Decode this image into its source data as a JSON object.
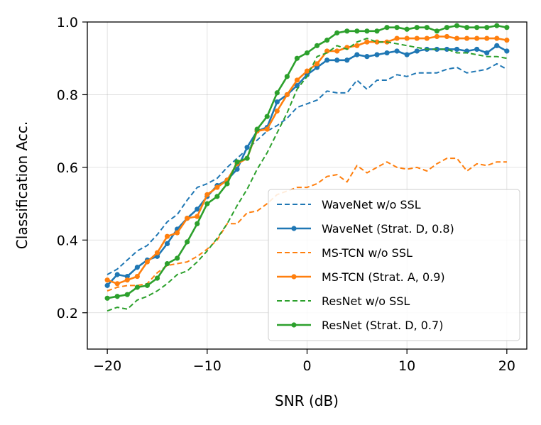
{
  "chart_data": {
    "type": "line",
    "title": "",
    "xlabel": "SNR (dB)",
    "ylabel": "Classification Acc.",
    "xlim": [
      -22,
      22
    ],
    "ylim": [
      0.1,
      1.0
    ],
    "xticks": [
      -20,
      -10,
      0,
      10,
      20
    ],
    "xtick_labels": [
      "−20",
      "−10",
      "0",
      "10",
      "20"
    ],
    "yticks": [
      0.2,
      0.4,
      0.6,
      0.8,
      1.0
    ],
    "ytick_labels": [
      "0.2",
      "0.4",
      "0.6",
      "0.8",
      "1.0"
    ],
    "grid": true,
    "legend_position": "bottom-right",
    "x": [
      -20,
      -19,
      -18,
      -17,
      -16,
      -15,
      -14,
      -13,
      -12,
      -11,
      -10,
      -9,
      -8,
      -7,
      -6,
      -5,
      -4,
      -3,
      -2,
      -1,
      0,
      1,
      2,
      3,
      4,
      5,
      6,
      7,
      8,
      9,
      10,
      11,
      12,
      13,
      14,
      15,
      16,
      17,
      18,
      19,
      20
    ],
    "series": [
      {
        "name": "WaveNet w/o SSL",
        "color": "#1f77b4",
        "style": "dashed",
        "markers": false,
        "values": [
          0.305,
          0.32,
          0.345,
          0.37,
          0.385,
          0.415,
          0.45,
          0.47,
          0.51,
          0.545,
          0.555,
          0.57,
          0.6,
          0.625,
          0.65,
          0.675,
          0.7,
          0.715,
          0.735,
          0.765,
          0.775,
          0.785,
          0.81,
          0.805,
          0.805,
          0.84,
          0.815,
          0.84,
          0.84,
          0.855,
          0.85,
          0.86,
          0.86,
          0.86,
          0.87,
          0.875,
          0.86,
          0.865,
          0.87,
          0.885,
          0.87
        ]
      },
      {
        "name": "WaveNet (Strat. D, 0.8)",
        "color": "#1f77b4",
        "style": "solid",
        "markers": true,
        "values": [
          0.275,
          0.305,
          0.3,
          0.325,
          0.345,
          0.355,
          0.39,
          0.43,
          0.46,
          0.485,
          0.52,
          0.55,
          0.565,
          0.595,
          0.655,
          0.7,
          0.71,
          0.78,
          0.8,
          0.825,
          0.855,
          0.875,
          0.895,
          0.895,
          0.895,
          0.91,
          0.905,
          0.91,
          0.915,
          0.92,
          0.91,
          0.92,
          0.925,
          0.925,
          0.925,
          0.925,
          0.92,
          0.925,
          0.915,
          0.935,
          0.92
        ]
      },
      {
        "name": "MS-TCN w/o SSL",
        "color": "#ff7f0e",
        "style": "dashed",
        "markers": false,
        "values": [
          0.26,
          0.27,
          0.275,
          0.275,
          0.28,
          0.31,
          0.33,
          0.335,
          0.34,
          0.355,
          0.375,
          0.4,
          0.445,
          0.445,
          0.475,
          0.48,
          0.5,
          0.525,
          0.535,
          0.545,
          0.545,
          0.555,
          0.575,
          0.58,
          0.56,
          0.605,
          0.585,
          0.6,
          0.615,
          0.6,
          0.595,
          0.6,
          0.59,
          0.61,
          0.625,
          0.625,
          0.59,
          0.61,
          0.605,
          0.615,
          0.615
        ]
      },
      {
        "name": "MS-TCN (Strat. A, 0.9)",
        "color": "#ff7f0e",
        "style": "solid",
        "markers": true,
        "values": [
          0.29,
          0.28,
          0.29,
          0.3,
          0.34,
          0.365,
          0.41,
          0.42,
          0.46,
          0.465,
          0.525,
          0.545,
          0.565,
          0.61,
          0.625,
          0.7,
          0.705,
          0.755,
          0.8,
          0.84,
          0.865,
          0.885,
          0.92,
          0.92,
          0.93,
          0.935,
          0.945,
          0.945,
          0.945,
          0.955,
          0.955,
          0.955,
          0.955,
          0.96,
          0.96,
          0.955,
          0.955,
          0.955,
          0.955,
          0.955,
          0.95
        ]
      },
      {
        "name": "ResNet w/o SSL",
        "color": "#2ca02c",
        "style": "dashed",
        "markers": false,
        "values": [
          0.205,
          0.215,
          0.21,
          0.235,
          0.245,
          0.26,
          0.28,
          0.305,
          0.315,
          0.34,
          0.37,
          0.405,
          0.445,
          0.495,
          0.54,
          0.595,
          0.64,
          0.695,
          0.75,
          0.815,
          0.85,
          0.905,
          0.915,
          0.935,
          0.925,
          0.945,
          0.955,
          0.945,
          0.945,
          0.94,
          0.935,
          0.93,
          0.925,
          0.925,
          0.925,
          0.915,
          0.915,
          0.91,
          0.905,
          0.905,
          0.9
        ]
      },
      {
        "name": "ResNet (Strat. D, 0.7)",
        "color": "#2ca02c",
        "style": "solid",
        "markers": true,
        "values": [
          0.24,
          0.245,
          0.25,
          0.27,
          0.275,
          0.295,
          0.335,
          0.35,
          0.395,
          0.445,
          0.5,
          0.52,
          0.555,
          0.615,
          0.625,
          0.705,
          0.74,
          0.805,
          0.85,
          0.9,
          0.915,
          0.935,
          0.95,
          0.97,
          0.975,
          0.975,
          0.975,
          0.975,
          0.985,
          0.985,
          0.98,
          0.985,
          0.985,
          0.975,
          0.985,
          0.99,
          0.985,
          0.985,
          0.985,
          0.99,
          0.985
        ]
      }
    ]
  }
}
